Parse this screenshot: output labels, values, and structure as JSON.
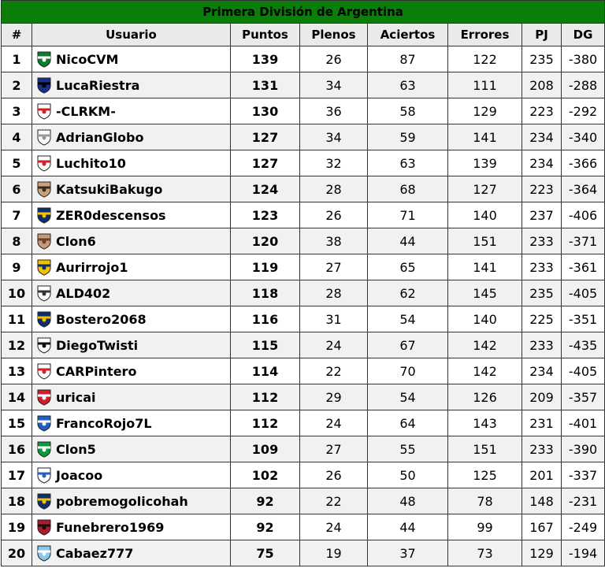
{
  "title": "Primera División de Argentina",
  "columns": [
    "#",
    "Usuario",
    "Puntos",
    "Plenos",
    "Aciertos",
    "Errores",
    "PJ",
    "DG"
  ],
  "rows": [
    {
      "pos": "1",
      "user": "NicoCVM",
      "pts": "139",
      "plenos": "26",
      "aciertos": "87",
      "errores": "122",
      "pj": "235",
      "dg": "-380",
      "badge": "banfield-crest-icon",
      "colors": [
        "#0b7d2f",
        "#ffffff"
      ]
    },
    {
      "pos": "2",
      "user": "LucaRiestra",
      "pts": "131",
      "plenos": "34",
      "aciertos": "63",
      "errores": "111",
      "pj": "208",
      "dg": "-288",
      "badge": "inter-crest-icon",
      "colors": [
        "#1a2f8a",
        "#000000"
      ]
    },
    {
      "pos": "3",
      "user": "-CLRKM-",
      "pts": "130",
      "plenos": "36",
      "aciertos": "58",
      "errores": "129",
      "pj": "223",
      "dg": "-292",
      "badge": "river-crest-icon",
      "colors": [
        "#ffffff",
        "#d11f2a"
      ]
    },
    {
      "pos": "4",
      "user": "AdrianGlobo",
      "pts": "127",
      "plenos": "34",
      "aciertos": "59",
      "errores": "141",
      "pj": "234",
      "dg": "-340",
      "badge": "globo-crest-icon",
      "colors": [
        "#ffffff",
        "#999999"
      ]
    },
    {
      "pos": "5",
      "user": "Luchito10",
      "pts": "127",
      "plenos": "32",
      "aciertos": "63",
      "errores": "139",
      "pj": "234",
      "dg": "-366",
      "badge": "estudiantes-crest-icon",
      "colors": [
        "#ffffff",
        "#d11f2a"
      ]
    },
    {
      "pos": "6",
      "user": "KatsukiBakugo",
      "pts": "124",
      "plenos": "28",
      "aciertos": "68",
      "errores": "127",
      "pj": "223",
      "dg": "-364",
      "badge": "avatar-photo-icon",
      "colors": [
        "#c9a27a",
        "#3a2a20"
      ]
    },
    {
      "pos": "7",
      "user": "ZER0descensos",
      "pts": "123",
      "plenos": "26",
      "aciertos": "71",
      "errores": "140",
      "pj": "237",
      "dg": "-406",
      "badge": "boca-crest-icon",
      "colors": [
        "#0f2f6b",
        "#f2c200"
      ]
    },
    {
      "pos": "8",
      "user": "Clon6",
      "pts": "120",
      "plenos": "38",
      "aciertos": "44",
      "errores": "151",
      "pj": "233",
      "dg": "-371",
      "badge": "avatar-photo-icon",
      "colors": [
        "#c99a7a",
        "#6b4030"
      ]
    },
    {
      "pos": "9",
      "user": "Aurirrojo1",
      "pts": "119",
      "plenos": "27",
      "aciertos": "65",
      "errores": "141",
      "pj": "233",
      "dg": "-361",
      "badge": "rosario-central-crest-icon",
      "colors": [
        "#f2c200",
        "#0f2f6b"
      ]
    },
    {
      "pos": "10",
      "user": "ALD402",
      "pts": "118",
      "plenos": "28",
      "aciertos": "62",
      "errores": "145",
      "pj": "235",
      "dg": "-405",
      "badge": "racing-crest-icon",
      "colors": [
        "#ffffff",
        "#333333"
      ]
    },
    {
      "pos": "11",
      "user": "Bostero2068",
      "pts": "116",
      "plenos": "31",
      "aciertos": "54",
      "errores": "140",
      "pj": "225",
      "dg": "-351",
      "badge": "boca-crest-icon",
      "colors": [
        "#0f2f6b",
        "#f2c200"
      ]
    },
    {
      "pos": "12",
      "user": "DiegoTwisti",
      "pts": "115",
      "plenos": "24",
      "aciertos": "67",
      "errores": "142",
      "pj": "233",
      "dg": "-435",
      "badge": "gimnasia-crest-icon",
      "colors": [
        "#ffffff",
        "#111111"
      ]
    },
    {
      "pos": "13",
      "user": "CARPintero",
      "pts": "114",
      "plenos": "22",
      "aciertos": "70",
      "errores": "142",
      "pj": "234",
      "dg": "-405",
      "badge": "river-crest-icon",
      "colors": [
        "#ffffff",
        "#d11f2a"
      ]
    },
    {
      "pos": "14",
      "user": "uricai",
      "pts": "112",
      "plenos": "29",
      "aciertos": "54",
      "errores": "126",
      "pj": "209",
      "dg": "-357",
      "badge": "independiente-crest-icon",
      "colors": [
        "#d11f2a",
        "#ffffff"
      ]
    },
    {
      "pos": "15",
      "user": "FrancoRojo7L",
      "pts": "112",
      "plenos": "24",
      "aciertos": "64",
      "errores": "143",
      "pj": "231",
      "dg": "-401",
      "badge": "scotland-flag-icon",
      "colors": [
        "#1f5fbf",
        "#ffffff"
      ]
    },
    {
      "pos": "16",
      "user": "Clon5",
      "pts": "109",
      "plenos": "27",
      "aciertos": "55",
      "errores": "151",
      "pj": "233",
      "dg": "-390",
      "badge": "sarmiento-crest-icon",
      "colors": [
        "#0b9a3a",
        "#ffffff"
      ]
    },
    {
      "pos": "17",
      "user": "Joacoo",
      "pts": "102",
      "plenos": "26",
      "aciertos": "50",
      "errores": "125",
      "pj": "201",
      "dg": "-337",
      "badge": "velez-crest-icon",
      "colors": [
        "#ffffff",
        "#2a5fbf"
      ]
    },
    {
      "pos": "18",
      "user": "pobremogolicohah",
      "pts": "92",
      "plenos": "22",
      "aciertos": "48",
      "errores": "78",
      "pj": "148",
      "dg": "-231",
      "badge": "boca-crest-icon",
      "colors": [
        "#0f2f6b",
        "#f2c200"
      ]
    },
    {
      "pos": "19",
      "user": "Funebrero1969",
      "pts": "92",
      "plenos": "24",
      "aciertos": "44",
      "errores": "99",
      "pj": "167",
      "dg": "-249",
      "badge": "chacarita-crest-icon",
      "colors": [
        "#b01b2a",
        "#111111"
      ]
    },
    {
      "pos": "20",
      "user": "Cabaez777",
      "pts": "75",
      "plenos": "19",
      "aciertos": "37",
      "errores": "73",
      "pj": "129",
      "dg": "-194",
      "badge": "atletico-tucuman-crest-icon",
      "colors": [
        "#8ac6ee",
        "#ffffff"
      ]
    }
  ]
}
